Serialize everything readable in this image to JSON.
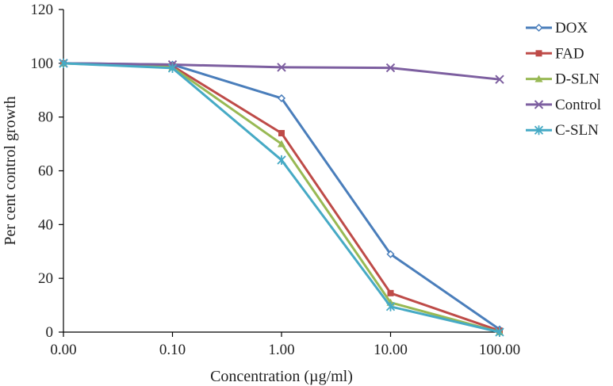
{
  "chart_data": {
    "type": "line",
    "title": "",
    "xlabel": "Concentration (µg/ml)",
    "ylabel": "Per cent control growth",
    "categories": [
      "0.00",
      "0.10",
      "1.00",
      "10.00",
      "100.00"
    ],
    "ylim": [
      0,
      120
    ],
    "yticks": [
      "0",
      "20",
      "40",
      "60",
      "80",
      "100",
      "120"
    ],
    "grid": false,
    "legend_position": "top-right",
    "series": [
      {
        "name": "DOX",
        "color": "#4a7ebb",
        "marker": "diamond",
        "values": [
          100,
          99.5,
          87,
          29,
          1
        ]
      },
      {
        "name": "FAD",
        "color": "#be4b48",
        "marker": "square",
        "values": [
          100,
          99,
          74,
          14.5,
          0.5
        ]
      },
      {
        "name": "D-SLN",
        "color": "#98b954",
        "marker": "triangle",
        "values": [
          100,
          98.5,
          70,
          11,
          0
        ]
      },
      {
        "name": "Control",
        "color": "#7d5fa0",
        "marker": "cross",
        "values": [
          100,
          99.5,
          98.5,
          98.3,
          94
        ]
      },
      {
        "name": "C-SLN",
        "color": "#46aac5",
        "marker": "star",
        "values": [
          100,
          98.2,
          64,
          9.5,
          0
        ]
      }
    ]
  }
}
